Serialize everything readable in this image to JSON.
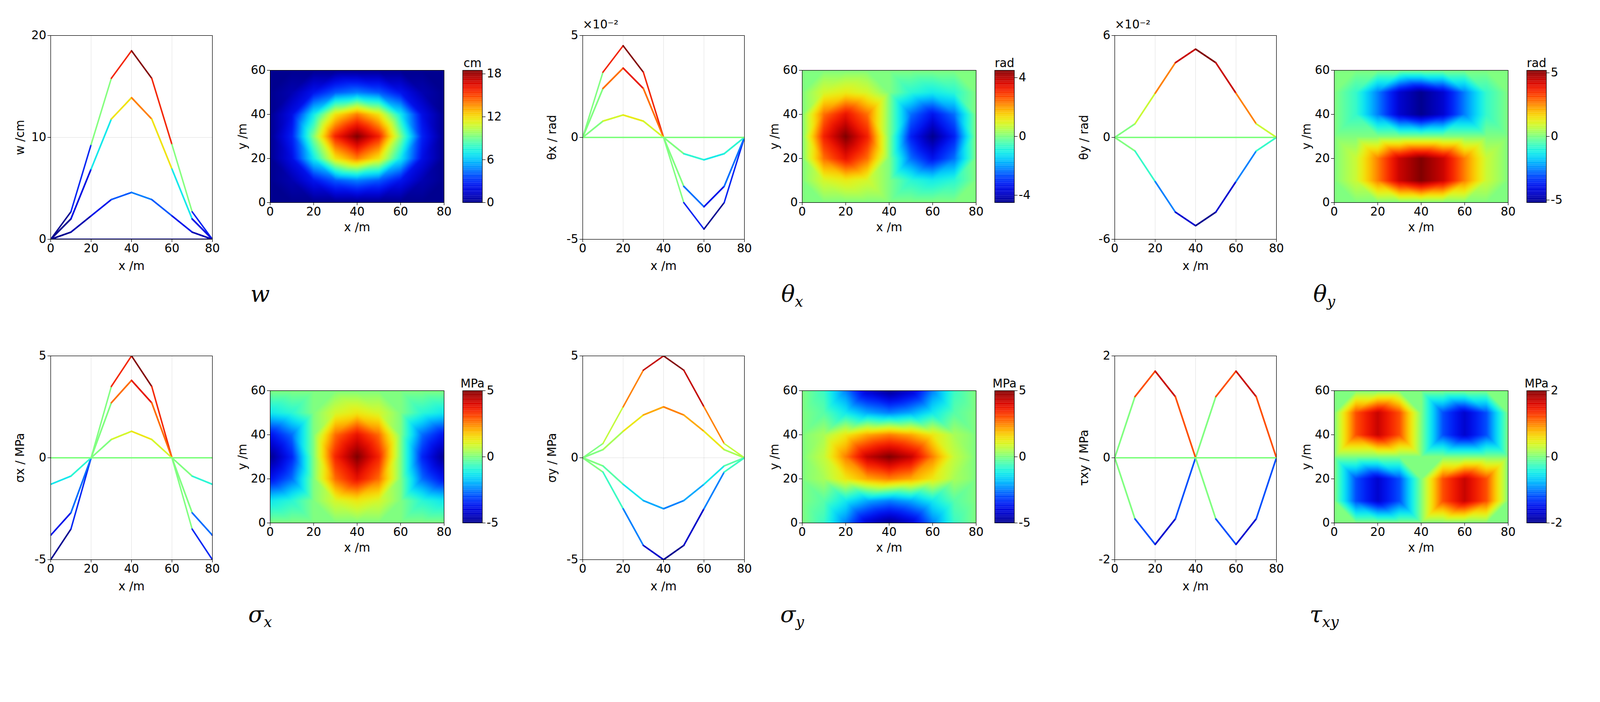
{
  "chart_data": [
    {
      "type": "heatmap",
      "title": "w",
      "xlabel": "x /m",
      "ylabel": "y /m",
      "zlabel": "w /cm",
      "grid": true,
      "xlim": [
        0,
        80
      ],
      "xticks": [
        0,
        20,
        40,
        60,
        80
      ],
      "ylim": [
        0,
        60
      ],
      "yticks": [
        0,
        20,
        40,
        60
      ],
      "zlim": [
        0,
        20
      ],
      "zticks": [
        0,
        10,
        20
      ],
      "colorbar": {
        "label": "cm",
        "range": [
          0,
          18.5
        ],
        "ticks": [
          0,
          6,
          12,
          18
        ]
      },
      "x": [
        0,
        10,
        20,
        30,
        40,
        50,
        60,
        70,
        80
      ],
      "y": [
        0,
        10,
        20,
        30,
        40,
        50,
        60
      ],
      "cells": [
        [
          0,
          0,
          0,
          0,
          0,
          0,
          0,
          0,
          0
        ],
        [
          0,
          0.7,
          2.3,
          3.9,
          4.6,
          3.9,
          2.3,
          0.7,
          0
        ],
        [
          0,
          2.0,
          6.9,
          11.8,
          13.9,
          11.8,
          6.9,
          2.0,
          0
        ],
        [
          0,
          2.7,
          9.3,
          15.8,
          18.5,
          15.8,
          9.3,
          2.7,
          0
        ],
        [
          0,
          2.0,
          6.9,
          11.8,
          13.9,
          11.8,
          6.9,
          2.0,
          0
        ],
        [
          0,
          0.7,
          2.3,
          3.9,
          4.6,
          3.9,
          2.3,
          0.7,
          0
        ],
        [
          0,
          0,
          0,
          0,
          0,
          0,
          0,
          0,
          0
        ]
      ]
    },
    {
      "type": "heatmap",
      "title": "θx",
      "xlabel": "x /m",
      "ylabel": "y /m",
      "zlabel": "θx / rad",
      "annotations": [
        "×10⁻²"
      ],
      "grid": true,
      "xlim": [
        0,
        80
      ],
      "xticks": [
        0,
        20,
        40,
        60,
        80
      ],
      "ylim": [
        0,
        60
      ],
      "yticks": [
        0,
        20,
        40,
        60
      ],
      "zlim": [
        -5,
        5
      ],
      "zticks": [
        -5,
        0,
        5
      ],
      "colorbar": {
        "label": "rad",
        "range": [
          -4.5,
          4.5
        ],
        "ticks": [
          -4,
          0,
          4
        ]
      },
      "x": [
        0,
        10,
        20,
        30,
        40,
        50,
        60,
        70,
        80
      ],
      "y": [
        0,
        10,
        20,
        30,
        40,
        50,
        60
      ],
      "cells": [
        [
          0,
          0,
          0,
          0,
          0,
          0,
          0,
          0,
          0
        ],
        [
          0,
          0.8,
          1.1,
          0.8,
          0,
          -0.8,
          -1.1,
          -0.8,
          0
        ],
        [
          0,
          2.4,
          3.4,
          2.4,
          0,
          -2.4,
          -3.4,
          -2.4,
          0
        ],
        [
          0,
          3.2,
          4.5,
          3.2,
          0,
          -3.2,
          -4.5,
          -3.2,
          0
        ],
        [
          0,
          2.4,
          3.4,
          2.4,
          0,
          -2.4,
          -3.4,
          -2.4,
          0
        ],
        [
          0,
          0.8,
          1.1,
          0.8,
          0,
          -0.8,
          -1.1,
          -0.8,
          0
        ],
        [
          0,
          0,
          0,
          0,
          0,
          0,
          0,
          0,
          0
        ]
      ]
    },
    {
      "type": "heatmap",
      "title": "θy",
      "xlabel": "x /m",
      "ylabel": "y /m",
      "zlabel": "θy / rad",
      "annotations": [
        "×10⁻²"
      ],
      "grid": true,
      "xlim": [
        0,
        80
      ],
      "xticks": [
        0,
        20,
        40,
        60,
        80
      ],
      "ylim": [
        0,
        60
      ],
      "yticks": [
        0,
        20,
        40,
        60
      ],
      "zlim": [
        -6,
        6
      ],
      "zticks": [
        -6,
        0,
        6
      ],
      "colorbar": {
        "label": "rad",
        "range": [
          -5.2,
          5.2
        ],
        "ticks": [
          -5,
          0,
          5
        ]
      },
      "x": [
        0,
        10,
        20,
        30,
        40,
        50,
        60,
        70,
        80
      ],
      "y": [
        0,
        10,
        20,
        30,
        40,
        50,
        60
      ],
      "cells": [
        [
          0,
          0,
          0,
          0,
          0,
          0,
          0,
          0,
          0
        ],
        [
          0,
          0.8,
          2.6,
          4.4,
          5.2,
          4.4,
          2.6,
          0.8,
          0
        ],
        [
          0,
          0.8,
          2.6,
          4.4,
          5.2,
          4.4,
          2.6,
          0.8,
          0
        ],
        [
          0,
          0,
          0,
          0,
          0,
          0,
          0,
          0,
          0
        ],
        [
          0,
          -0.8,
          -2.6,
          -4.4,
          -5.2,
          -4.4,
          -2.6,
          -0.8,
          0
        ],
        [
          0,
          -0.8,
          -2.6,
          -4.4,
          -5.2,
          -4.4,
          -2.6,
          -0.8,
          0
        ],
        [
          0,
          0,
          0,
          0,
          0,
          0,
          0,
          0,
          0
        ]
      ]
    },
    {
      "type": "heatmap",
      "title": "σx",
      "xlabel": "x /m",
      "ylabel": "y /m",
      "zlabel": "σx / MPa",
      "grid": true,
      "xlim": [
        0,
        80
      ],
      "xticks": [
        0,
        20,
        40,
        60,
        80
      ],
      "ylim": [
        0,
        60
      ],
      "yticks": [
        0,
        20,
        40,
        60
      ],
      "zlim": [
        -5,
        5
      ],
      "zticks": [
        -5,
        0,
        5
      ],
      "colorbar": {
        "label": "MPa",
        "range": [
          -5,
          5
        ],
        "ticks": [
          -5,
          0,
          5
        ]
      },
      "x": [
        0,
        10,
        20,
        30,
        40,
        50,
        60,
        70,
        80
      ],
      "y": [
        0,
        10,
        20,
        30,
        40,
        50,
        60
      ],
      "cells": [
        [
          0,
          0,
          0,
          0,
          0,
          0,
          0,
          0,
          0
        ],
        [
          -1.3,
          -0.9,
          0,
          0.9,
          1.3,
          0.9,
          0,
          -0.9,
          -1.3
        ],
        [
          -3.8,
          -2.7,
          0,
          2.7,
          3.8,
          2.7,
          0,
          -2.7,
          -3.8
        ],
        [
          -5,
          -3.5,
          0,
          3.5,
          5,
          3.5,
          0,
          -3.5,
          -5
        ],
        [
          -3.8,
          -2.7,
          0,
          2.7,
          3.8,
          2.7,
          0,
          -2.7,
          -3.8
        ],
        [
          -1.3,
          -0.9,
          0,
          0.9,
          1.3,
          0.9,
          0,
          -0.9,
          -1.3
        ],
        [
          0,
          0,
          0,
          0,
          0,
          0,
          0,
          0,
          0
        ]
      ]
    },
    {
      "type": "heatmap",
      "title": "σy",
      "xlabel": "x /m",
      "ylabel": "y /m",
      "zlabel": "σy / MPa",
      "grid": true,
      "xlim": [
        0,
        80
      ],
      "xticks": [
        0,
        20,
        40,
        60,
        80
      ],
      "ylim": [
        0,
        60
      ],
      "yticks": [
        0,
        20,
        40,
        60
      ],
      "zlim": [
        -5,
        5
      ],
      "zticks": [
        -5,
        0,
        5
      ],
      "colorbar": {
        "label": "MPa",
        "range": [
          -5,
          5
        ],
        "ticks": [
          -5,
          0,
          5
        ]
      },
      "x": [
        0,
        10,
        20,
        30,
        40,
        50,
        60,
        70,
        80
      ],
      "y": [
        0,
        10,
        20,
        30,
        40,
        50,
        60
      ],
      "cells": [
        [
          0,
          -0.7,
          -2.5,
          -4.3,
          -5,
          -4.3,
          -2.5,
          -0.7,
          0
        ],
        [
          0,
          -0.4,
          -1.3,
          -2.1,
          -2.5,
          -2.1,
          -1.3,
          -0.4,
          0
        ],
        [
          0,
          0.4,
          1.3,
          2.1,
          2.5,
          2.1,
          1.3,
          0.4,
          0
        ],
        [
          0,
          0.7,
          2.5,
          4.3,
          5,
          4.3,
          2.5,
          0.7,
          0
        ],
        [
          0,
          0.4,
          1.3,
          2.1,
          2.5,
          2.1,
          1.3,
          0.4,
          0
        ],
        [
          0,
          -0.4,
          -1.3,
          -2.1,
          -2.5,
          -2.1,
          -1.3,
          -0.4,
          0
        ],
        [
          0,
          -0.7,
          -2.5,
          -4.3,
          -5,
          -4.3,
          -2.5,
          -0.7,
          0
        ]
      ]
    },
    {
      "type": "heatmap",
      "title": "τxy",
      "xlabel": "x /m",
      "ylabel": "y /m",
      "zlabel": "τxy / MPa",
      "grid": true,
      "xlim": [
        0,
        80
      ],
      "xticks": [
        0,
        20,
        40,
        60,
        80
      ],
      "ylim": [
        0,
        60
      ],
      "yticks": [
        0,
        20,
        40,
        60
      ],
      "zlim": [
        -2,
        2
      ],
      "zticks": [
        -2,
        0,
        2
      ],
      "colorbar": {
        "label": "MPa",
        "range": [
          -2,
          2
        ],
        "ticks": [
          -2,
          0,
          2
        ]
      },
      "x": [
        0,
        10,
        20,
        30,
        40,
        50,
        60,
        70,
        80
      ],
      "y": [
        0,
        10,
        20,
        30,
        40,
        50,
        60
      ],
      "cells": [
        [
          0,
          0,
          0,
          0,
          0,
          0,
          0,
          0,
          0
        ],
        [
          0,
          -1.2,
          -1.7,
          -1.2,
          0,
          1.2,
          1.7,
          1.2,
          0
        ],
        [
          0,
          -1.2,
          -1.7,
          -1.2,
          0,
          1.2,
          1.7,
          1.2,
          0
        ],
        [
          0,
          0,
          0,
          0,
          0,
          0,
          0,
          0,
          0
        ],
        [
          0,
          1.2,
          1.7,
          1.2,
          0,
          -1.2,
          -1.7,
          -1.2,
          0
        ],
        [
          0,
          1.2,
          1.7,
          1.2,
          0,
          -1.2,
          -1.7,
          -1.2,
          0
        ],
        [
          0,
          0,
          0,
          0,
          0,
          0,
          0,
          0,
          0
        ]
      ]
    }
  ]
}
